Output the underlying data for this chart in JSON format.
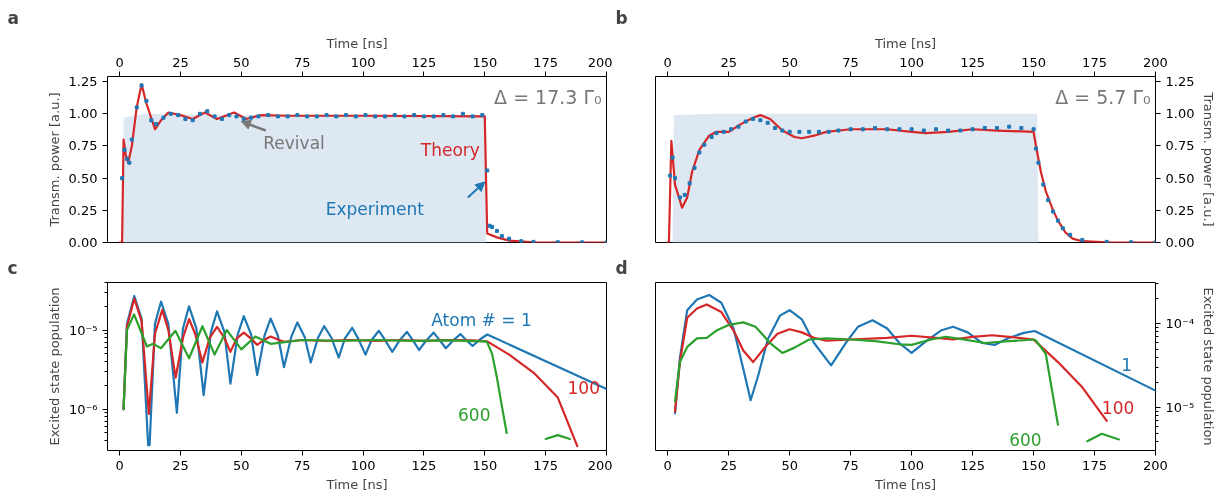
{
  "chart_data": [
    {
      "type": "line",
      "title": "a",
      "xlabel": "Time [ns]",
      "ylabel": "Transm. power [a.u.]",
      "xlim": [
        -5,
        200
      ],
      "xticks": [
        0,
        25,
        50,
        75,
        100,
        125,
        150,
        175,
        200
      ],
      "ylim": [
        0,
        1.29
      ],
      "yticks": [
        {
          "value": 0,
          "label": "0.00"
        },
        {
          "value": 0.25,
          "label": "0.25"
        },
        {
          "value": 0.5,
          "label": "0.50"
        },
        {
          "value": 0.75,
          "label": "0.75"
        },
        {
          "value": 1,
          "label": "1.00"
        },
        {
          "value": 1.25,
          "label": "1.25"
        }
      ],
      "annotations": [
        "Δ = 17.3 Γ₀",
        {
          "text": "Revival",
          "x": 49,
          "y": 0.97
        }
      ],
      "series": [
        {
          "type": "area",
          "color": "#dde8f3",
          "x": [
            0,
            1.5,
            1.6,
            10,
            50,
            100,
            150,
            150.5,
            200
          ],
          "values": [
            0,
            0,
            0.97,
            1.0,
            0.99,
            0.99,
            0.99,
            0,
            0
          ]
        },
        {
          "type": "line",
          "name": "Theory",
          "color": "#d62728",
          "x": [
            0,
            1,
            1.6,
            2.5,
            3.5,
            5,
            7,
            9,
            11,
            14.5,
            17,
            20,
            25,
            30,
            35,
            40,
            47,
            52,
            58,
            70,
            100,
            150,
            150.5,
            151,
            155,
            160,
            170,
            200
          ],
          "values": [
            0,
            0,
            0.8,
            0.68,
            0.62,
            0.75,
            1.05,
            1.23,
            1.08,
            0.88,
            0.95,
            1.01,
            0.99,
            0.96,
            1.01,
            0.96,
            1.01,
            0.96,
            0.99,
            0.985,
            0.985,
            0.98,
            0.5,
            0.07,
            0.04,
            0.015,
            0.002,
            0
          ]
        },
        {
          "type": "scatter",
          "name": "Experiment",
          "marker": "square",
          "color": "#1f77b4",
          "x": [
            1,
            2,
            3,
            4,
            5,
            7,
            9,
            11,
            13,
            15,
            18,
            21,
            24,
            27,
            30,
            33,
            36,
            39,
            42,
            45,
            48,
            51,
            54,
            57,
            61,
            65,
            69,
            73,
            77,
            81,
            85,
            89,
            93,
            97,
            101,
            105,
            109,
            113,
            117,
            121,
            125,
            129,
            133,
            137,
            141,
            145,
            149,
            151,
            152,
            153,
            155,
            157,
            160,
            165,
            170,
            180,
            190,
            200
          ],
          "values": [
            0.5,
            0.72,
            0.65,
            0.62,
            0.8,
            1.05,
            1.22,
            1.1,
            0.95,
            0.92,
            0.97,
            1.0,
            0.99,
            0.96,
            0.95,
            1.0,
            1.02,
            0.98,
            0.96,
            0.99,
            0.98,
            0.96,
            0.97,
            0.98,
            0.99,
            0.98,
            0.98,
            0.99,
            0.98,
            0.98,
            0.99,
            0.98,
            0.99,
            0.98,
            0.99,
            0.98,
            0.98,
            0.99,
            0.98,
            0.99,
            0.98,
            0.98,
            0.99,
            0.98,
            1.0,
            0.98,
            0.99,
            0.56,
            0.13,
            0.12,
            0.09,
            0.05,
            0.03,
            0.01,
            0.005,
            0.002,
            0.001,
            0
          ]
        }
      ]
    },
    {
      "type": "line",
      "title": "b",
      "xlabel": "Time [ns]",
      "ylabel": "Transm. power [a.u.]",
      "xlim": [
        -5,
        200
      ],
      "xticks": [
        0,
        25,
        50,
        75,
        100,
        125,
        150,
        175,
        200
      ],
      "ylim": [
        0,
        1.29
      ],
      "yticks": [
        {
          "value": 0,
          "label": "0.00"
        },
        {
          "value": 0.25,
          "label": "0.25"
        },
        {
          "value": 0.5,
          "label": "0.50"
        },
        {
          "value": 0.75,
          "label": "0.75"
        },
        {
          "value": 1,
          "label": "1.00"
        },
        {
          "value": 1.25,
          "label": "1.25"
        }
      ],
      "annotations": [
        "Δ = 5.7 Γ₀"
      ],
      "series": [
        {
          "type": "area",
          "color": "#dde8f3",
          "x": [
            0,
            2,
            2.5,
            20,
            75,
            120,
            151.5,
            152,
            200
          ],
          "values": [
            0,
            0,
            0.99,
            1.0,
            1.0,
            1.0,
            1.0,
            0,
            0
          ]
        },
        {
          "type": "line",
          "color": "#d62728",
          "x": [
            0,
            0.5,
            1.5,
            3,
            5.9,
            8,
            10,
            13,
            17,
            20,
            25,
            30,
            35,
            38,
            42,
            47,
            52,
            55,
            60,
            65,
            75,
            90,
            100,
            106,
            115,
            125,
            135,
            150,
            151,
            153,
            155,
            158,
            160,
            163,
            166,
            170,
            180,
            200
          ],
          "values": [
            0,
            0,
            0.79,
            0.45,
            0.27,
            0.35,
            0.55,
            0.72,
            0.83,
            0.86,
            0.86,
            0.92,
            0.97,
            0.99,
            0.96,
            0.87,
            0.82,
            0.81,
            0.83,
            0.86,
            0.88,
            0.88,
            0.86,
            0.85,
            0.86,
            0.88,
            0.87,
            0.86,
            0.75,
            0.55,
            0.4,
            0.25,
            0.17,
            0.08,
            0.03,
            0.01,
            0.002,
            0
          ]
        },
        {
          "type": "scatter",
          "marker": "square",
          "color": "#1f77b4",
          "x": [
            1,
            2,
            3,
            5,
            7,
            9,
            11,
            13,
            15,
            18,
            20,
            23,
            26,
            29,
            32,
            35,
            38,
            41,
            44,
            47,
            50,
            54,
            58,
            62,
            66,
            70,
            75,
            80,
            85,
            90,
            95,
            100,
            105,
            110,
            115,
            120,
            125,
            130,
            135,
            140,
            145,
            150,
            151,
            152,
            154,
            156,
            158,
            160,
            162,
            165,
            170,
            180,
            190,
            200
          ],
          "values": [
            0.52,
            0.66,
            0.5,
            0.35,
            0.37,
            0.46,
            0.58,
            0.7,
            0.76,
            0.82,
            0.85,
            0.86,
            0.88,
            0.9,
            0.94,
            0.96,
            0.95,
            0.93,
            0.89,
            0.87,
            0.86,
            0.86,
            0.86,
            0.86,
            0.86,
            0.87,
            0.88,
            0.88,
            0.89,
            0.88,
            0.88,
            0.88,
            0.87,
            0.88,
            0.87,
            0.87,
            0.88,
            0.89,
            0.89,
            0.9,
            0.89,
            0.88,
            0.73,
            0.62,
            0.45,
            0.33,
            0.24,
            0.17,
            0.11,
            0.06,
            0.02,
            0.005,
            0.002,
            0
          ]
        }
      ]
    },
    {
      "type": "line",
      "title": "c",
      "xlabel": "Time [ns]",
      "ylabel": "Excited state population",
      "xlim": [
        -5,
        200
      ],
      "xticks": [
        0,
        25,
        50,
        75,
        100,
        125,
        150,
        175,
        200
      ],
      "log": "y",
      "ylim": [
        3e-07,
        4e-05
      ],
      "yticks": [
        {
          "value": 4e-07,
          "label": null
        },
        {
          "value": 5e-07,
          "label": null
        },
        {
          "value": 6e-07,
          "label": null
        },
        {
          "value": 7e-07,
          "label": null
        },
        {
          "value": 8e-07,
          "label": null
        },
        {
          "value": 9e-07,
          "label": null
        },
        {
          "value": 1e-06,
          "label": "10⁻⁶"
        },
        {
          "value": 2e-06,
          "label": null
        },
        {
          "value": 3e-06,
          "label": null
        },
        {
          "value": 4e-06,
          "label": null
        },
        {
          "value": 5e-06,
          "label": null
        },
        {
          "value": 6e-06,
          "label": null
        },
        {
          "value": 7e-06,
          "label": null
        },
        {
          "value": 8e-06,
          "label": null
        },
        {
          "value": 9e-06,
          "label": null
        },
        {
          "value": 1e-05,
          "label": "10⁻⁵"
        },
        {
          "value": 2e-05,
          "label": null
        },
        {
          "value": 3e-05,
          "label": null
        },
        {
          "value": 4e-05,
          "label": null
        }
      ],
      "series": [
        {
          "name": "Atom # = 1",
          "color": "#1f77b4",
          "x": [
            1.6,
            3,
            6,
            9,
            11.7,
            12.3,
            14.5,
            17,
            20,
            23.5,
            26,
            28.5,
            31.5,
            34.5,
            37.5,
            40,
            43,
            45.5,
            48.5,
            51,
            54,
            56.5,
            59.5,
            62,
            65,
            67.5,
            70.5,
            73,
            76,
            78.5,
            81.5,
            84,
            87,
            90,
            92.5,
            95.5,
            98,
            101,
            103.5,
            106.5,
            109,
            112,
            115,
            118,
            120.5,
            123,
            126,
            129,
            131.5,
            134,
            137,
            140,
            142.5,
            145,
            148,
            151,
            200
          ],
          "values": [
            1e-06,
            1.2e-05,
            2.7e-05,
            1.4e-05,
            3.5e-07,
            3.5e-07,
            1.2e-05,
            2.3e-05,
            1.2e-05,
            9e-07,
            1.05e-05,
            2e-05,
            1.05e-05,
            1.5e-06,
            9.5e-06,
            1.73e-05,
            9.5e-06,
            2.1e-06,
            8.8e-06,
            1.5e-05,
            8.8e-06,
            2.7e-06,
            8.5e-06,
            1.4e-05,
            8.5e-06,
            3.4e-06,
            8.2e-06,
            1.25e-05,
            8.2e-06,
            3.9e-06,
            8e-06,
            1.12e-05,
            8e-06,
            4.5e-06,
            7.8e-06,
            1.07e-05,
            7.8e-06,
            4.9e-06,
            7.5e-06,
            9.8e-06,
            7.5e-06,
            5.3e-06,
            7.4e-06,
            9.5e-06,
            7.4e-06,
            5.6e-06,
            7.4e-06,
            9.3e-06,
            7.4e-06,
            5.9e-06,
            7.4e-06,
            8.9e-06,
            7.4e-06,
            6.3e-06,
            7.6e-06,
            8.8e-06,
            1.8e-06
          ]
        },
        {
          "name": "100",
          "color": "#d62728",
          "x": [
            1.6,
            3,
            6,
            9,
            12,
            14.5,
            17.5,
            20,
            23,
            26,
            28.5,
            31,
            34,
            37,
            40,
            43,
            45.5,
            48,
            51,
            54,
            56.5,
            59,
            62,
            65,
            67.5,
            75,
            85,
            95,
            105,
            115,
            125,
            135,
            145,
            151,
            160,
            170,
            180,
            188
          ],
          "values": [
            1e-06,
            1.1e-05,
            2.5e-05,
            1.3e-05,
            8.7e-07,
            9e-06,
            1.8e-05,
            1e-05,
            2.5e-06,
            8e-06,
            1.38e-05,
            9e-06,
            3.9e-06,
            8e-06,
            1.1e-05,
            8e-06,
            5.3e-06,
            7.8e-06,
            9.3e-06,
            7.8e-06,
            6.5e-06,
            7.4e-06,
            8.3e-06,
            7.6e-06,
            7.1e-06,
            7.5e-06,
            7.3e-06,
            7.5e-06,
            7.3e-06,
            7.5e-06,
            7.3e-06,
            7.5e-06,
            7.4e-06,
            7.2e-06,
            4.9e-06,
            2.9e-06,
            1.4e-06,
            3.4e-07
          ]
        },
        {
          "name": "600",
          "color": "#2ca02c",
          "x": [
            1.6,
            3,
            5.9,
            11.2,
            13.7,
            17,
            22.9,
            28.5,
            34,
            39,
            44,
            50,
            55.7,
            62,
            75,
            90,
            105,
            120,
            135,
            150,
            151,
            153,
            155,
            157,
            159
          ],
          "values": [
            1e-06,
            1e-05,
            1.58e-05,
            6.2e-06,
            6.7e-06,
            5.9e-06,
            9.8e-06,
            4.4e-06,
            1.12e-05,
            4.9e-06,
            1e-05,
            5.7e-06,
            8.3e-06,
            6.7e-06,
            7.5e-06,
            7.3e-06,
            7.5e-06,
            7.3e-06,
            7.4e-06,
            7.2e-06,
            7e-06,
            5e-06,
            2.5e-06,
            1.1e-06,
            5e-07
          ]
        },
        {
          "color": "#2ca02c",
          "x": [
            175,
            180,
            185
          ],
          "values": [
            4.2e-07,
            4.7e-07,
            4.2e-07
          ]
        }
      ]
    },
    {
      "type": "line",
      "title": "d",
      "xlabel": "Time [ns]",
      "ylabel": "Excited state population",
      "xlim": [
        -5,
        200
      ],
      "xticks": [
        0,
        25,
        50,
        75,
        100,
        125,
        150,
        175,
        200
      ],
      "log": "y",
      "ylim": [
        3.1e-06,
        0.00031
      ],
      "yticks": [
        {
          "value": 4e-06,
          "label": null
        },
        {
          "value": 5e-06,
          "label": null
        },
        {
          "value": 6e-06,
          "label": null
        },
        {
          "value": 7e-06,
          "label": null
        },
        {
          "value": 8e-06,
          "label": null
        },
        {
          "value": 9e-06,
          "label": null
        },
        {
          "value": 1e-05,
          "label": "10⁻⁵"
        },
        {
          "value": 2e-05,
          "label": null
        },
        {
          "value": 3e-05,
          "label": null
        },
        {
          "value": 4e-05,
          "label": null
        },
        {
          "value": 5e-05,
          "label": null
        },
        {
          "value": 6e-05,
          "label": null
        },
        {
          "value": 7e-05,
          "label": null
        },
        {
          "value": 8e-05,
          "label": null
        },
        {
          "value": 9e-05,
          "label": null
        },
        {
          "value": 0.0001,
          "label": "10⁻⁴"
        },
        {
          "value": 0.0002,
          "label": null
        },
        {
          "value": 0.0003,
          "label": null
        }
      ],
      "series": [
        {
          "name": "1",
          "color": "#1f77b4",
          "x": [
            3,
            5,
            8,
            12,
            17,
            22,
            27,
            31,
            34,
            37,
            41,
            46,
            50,
            55,
            60,
            67,
            73,
            78,
            84,
            90,
            95,
            100,
            106,
            112,
            117,
            123,
            129,
            134,
            140,
            146,
            150.5,
            200
          ],
          "values": [
            8.6e-06,
            3.9e-05,
            0.000145,
            0.000195,
            0.00022,
            0.000178,
            8.8e-05,
            2.9e-05,
            1.23e-05,
            2.36e-05,
            6.5e-05,
            0.000125,
            0.000145,
            0.000113,
            5.9e-05,
            3.2e-05,
            5.9e-05,
            9.2e-05,
            0.00011,
            8.8e-05,
            5.9e-05,
            4.5e-05,
            6.2e-05,
            8.3e-05,
            9.2e-05,
            7.9e-05,
            5.9e-05,
            5.6e-05,
            6.8e-05,
            7.8e-05,
            8.2e-05,
            1.6e-05
          ]
        },
        {
          "name": "100",
          "color": "#d62728",
          "x": [
            3,
            5,
            8,
            12,
            16,
            22,
            27,
            31,
            35,
            40,
            45,
            50,
            55,
            60,
            65,
            75,
            90,
            100,
            110,
            117,
            125,
            133,
            140,
            150,
            160,
            170,
            180
          ],
          "values": [
            9e-06,
            3.5e-05,
            0.000118,
            0.000152,
            0.00017,
            0.000138,
            8.3e-05,
            4.8e-05,
            3.5e-05,
            5.3e-05,
            7.6e-05,
            8.6e-05,
            7.9e-05,
            6.8e-05,
            6.3e-05,
            6.5e-05,
            6.8e-05,
            7.2e-05,
            6.8e-05,
            6.5e-05,
            7e-05,
            7.3e-05,
            7e-05,
            6.5e-05,
            3.5e-05,
            1.75e-05,
            7e-06
          ]
        },
        {
          "name": "600",
          "color": "#2ca02c",
          "x": [
            3,
            5,
            8,
            12,
            16,
            20,
            25,
            31,
            36,
            42,
            47,
            52,
            58,
            65,
            75,
            85,
            95,
            100,
            108,
            114,
            120,
            130,
            140,
            150,
            151,
            155,
            160
          ],
          "values": [
            1.2e-05,
            3.5e-05,
            5.3e-05,
            6.7e-05,
            6.8e-05,
            8.3e-05,
            9.7e-05,
            0.000104,
            9.2e-05,
            5.9e-05,
            4.5e-05,
            5.2e-05,
            6.5e-05,
            6.7e-05,
            6.5e-05,
            6.2e-05,
            5.7e-05,
            5.6e-05,
            6.5e-05,
            7e-05,
            6.6e-05,
            5.9e-05,
            6.2e-05,
            6.5e-05,
            6.3e-05,
            4.4e-05,
            6.3e-06
          ]
        },
        {
          "color": "#2ca02c",
          "x": [
            172,
            178,
            185
          ],
          "values": [
            4e-06,
            4.9e-06,
            4.2e-06
          ]
        }
      ]
    }
  ]
}
